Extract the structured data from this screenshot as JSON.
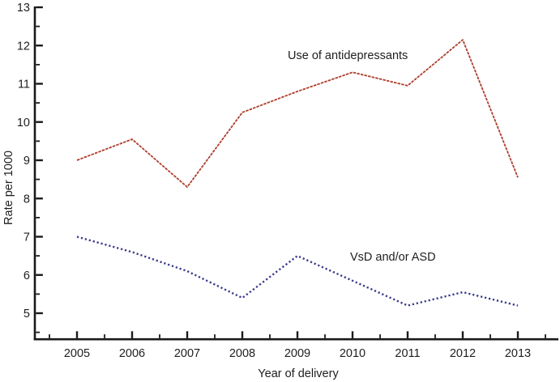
{
  "chart_data": {
    "type": "line",
    "title": "",
    "xlabel": "Year of delivery",
    "ylabel": "Rate per 1000",
    "x": [
      2005,
      2006,
      2007,
      2008,
      2009,
      2010,
      2011,
      2012,
      2013
    ],
    "xticklabels": [
      "2005",
      "2006",
      "2007",
      "2008",
      "2009",
      "2010",
      "2011",
      "2012",
      "2013"
    ],
    "yticks": [
      5,
      6,
      7,
      8,
      9,
      10,
      11,
      12,
      13
    ],
    "yticklabels": [
      "5",
      "6",
      "7",
      "8",
      "9",
      "10",
      "11",
      "12",
      "13"
    ],
    "ylim": [
      4.1,
      13
    ],
    "grid": false,
    "legend_position": "inline-annotations",
    "axis_color": "#1a1a1a",
    "series": [
      {
        "name": "use-of-antidepressants",
        "label": "Use of antidepressants",
        "style": "dashed-solid",
        "color": "#ad3f2d",
        "values": [
          9.0,
          9.55,
          8.3,
          10.25,
          10.8,
          11.3,
          10.95,
          12.15,
          8.55
        ]
      },
      {
        "name": "vsd-and-or-asd",
        "label": "VsD and/or ASD",
        "style": "dotted",
        "color": "#39398c",
        "values": [
          7.0,
          6.6,
          6.1,
          5.4,
          6.5,
          5.85,
          5.2,
          5.55,
          5.2
        ]
      }
    ]
  }
}
